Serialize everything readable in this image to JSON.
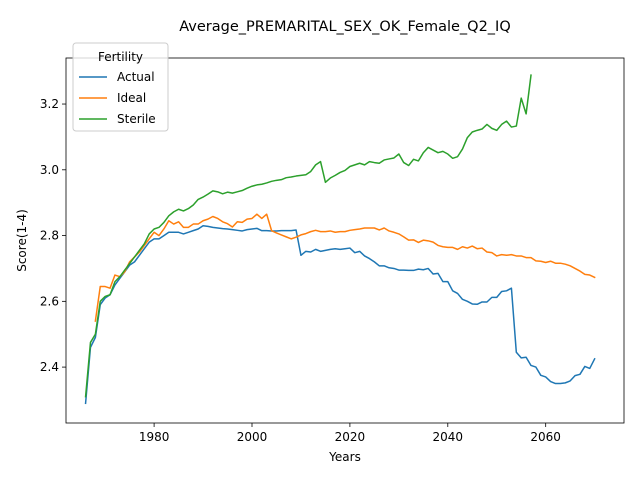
{
  "chart_data": {
    "type": "line",
    "title": "Average_PREMARITAL_SEX_OK_Female_Q2_IQ",
    "xlabel": "Years",
    "ylabel": "Score(1-4)",
    "xlim": [
      1962,
      2076
    ],
    "ylim": [
      2.23,
      3.34
    ],
    "x_ticks": [
      1980,
      2000,
      2020,
      2040,
      2060
    ],
    "y_ticks": [
      2.4,
      2.6,
      2.8,
      3.0,
      3.2
    ],
    "x_tick_labels": [
      "1980",
      "2000",
      "2020",
      "2040",
      "2060"
    ],
    "y_tick_labels": [
      "2.4",
      "2.6",
      "2.8",
      "3.0",
      "3.2"
    ],
    "grid": false,
    "legend": {
      "title": "Fertility",
      "placement": "top-left"
    },
    "series": [
      {
        "name": "Actual",
        "color": "#1f77b4",
        "points": [
          [
            1966,
            2.29
          ],
          [
            1967,
            2.46
          ],
          [
            1968,
            2.49
          ],
          [
            1969,
            2.59
          ],
          [
            1970,
            2.61
          ],
          [
            1971,
            2.62
          ],
          [
            1972,
            2.65
          ],
          [
            1973,
            2.67
          ],
          [
            1974,
            2.69
          ],
          [
            1975,
            2.71
          ],
          [
            1976,
            2.72
          ],
          [
            1977,
            2.74
          ],
          [
            1978,
            2.76
          ],
          [
            1979,
            2.78
          ],
          [
            1980,
            2.79
          ],
          [
            1981,
            2.79
          ],
          [
            1982,
            2.8
          ],
          [
            1983,
            2.81
          ],
          [
            1984,
            2.81
          ],
          [
            1985,
            2.81
          ],
          [
            1986,
            2.805
          ],
          [
            1987,
            2.81
          ],
          [
            1988,
            2.815
          ],
          [
            1989,
            2.82
          ],
          [
            1990,
            2.83
          ],
          [
            1991,
            2.828
          ],
          [
            1992,
            2.825
          ],
          [
            1993,
            2.823
          ],
          [
            1994,
            2.821
          ],
          [
            1995,
            2.82
          ],
          [
            1996,
            2.818
          ],
          [
            1997,
            2.816
          ],
          [
            1998,
            2.814
          ],
          [
            1999,
            2.818
          ],
          [
            2000,
            2.82
          ],
          [
            2001,
            2.822
          ],
          [
            2002,
            2.815
          ],
          [
            2003,
            2.815
          ],
          [
            2004,
            2.814
          ],
          [
            2005,
            2.814
          ],
          [
            2006,
            2.815
          ],
          [
            2007,
            2.815
          ],
          [
            2008,
            2.815
          ],
          [
            2009,
            2.817
          ],
          [
            2010,
            2.74
          ],
          [
            2011,
            2.752
          ],
          [
            2012,
            2.75
          ],
          [
            2013,
            2.758
          ],
          [
            2014,
            2.752
          ],
          [
            2015,
            2.755
          ],
          [
            2016,
            2.758
          ],
          [
            2017,
            2.76
          ],
          [
            2018,
            2.758
          ],
          [
            2019,
            2.76
          ],
          [
            2020,
            2.762
          ],
          [
            2021,
            2.748
          ],
          [
            2022,
            2.752
          ],
          [
            2023,
            2.738
          ],
          [
            2024,
            2.73
          ],
          [
            2025,
            2.72
          ],
          [
            2026,
            2.708
          ],
          [
            2027,
            2.708
          ],
          [
            2028,
            2.702
          ],
          [
            2029,
            2.7
          ],
          [
            2030,
            2.695
          ],
          [
            2031,
            2.695
          ],
          [
            2032,
            2.694
          ],
          [
            2033,
            2.694
          ],
          [
            2034,
            2.698
          ],
          [
            2035,
            2.696
          ],
          [
            2036,
            2.7
          ],
          [
            2037,
            2.683
          ],
          [
            2038,
            2.685
          ],
          [
            2039,
            2.66
          ],
          [
            2040,
            2.66
          ],
          [
            2041,
            2.632
          ],
          [
            2042,
            2.624
          ],
          [
            2043,
            2.606
          ],
          [
            2044,
            2.6
          ],
          [
            2045,
            2.592
          ],
          [
            2046,
            2.591
          ],
          [
            2047,
            2.598
          ],
          [
            2048,
            2.598
          ],
          [
            2049,
            2.612
          ],
          [
            2050,
            2.612
          ],
          [
            2051,
            2.63
          ],
          [
            2052,
            2.632
          ],
          [
            2053,
            2.64
          ],
          [
            2054,
            2.445
          ],
          [
            2055,
            2.428
          ],
          [
            2056,
            2.43
          ],
          [
            2057,
            2.405
          ],
          [
            2058,
            2.4
          ],
          [
            2059,
            2.375
          ],
          [
            2060,
            2.37
          ],
          [
            2061,
            2.356
          ],
          [
            2062,
            2.35
          ],
          [
            2063,
            2.35
          ],
          [
            2064,
            2.352
          ],
          [
            2065,
            2.358
          ],
          [
            2066,
            2.374
          ],
          [
            2067,
            2.378
          ],
          [
            2068,
            2.402
          ],
          [
            2069,
            2.396
          ],
          [
            2070,
            2.425
          ]
        ]
      },
      {
        "name": "Ideal",
        "color": "#ff7f0e",
        "points": [
          [
            1968,
            2.54
          ],
          [
            1969,
            2.645
          ],
          [
            1970,
            2.645
          ],
          [
            1971,
            2.64
          ],
          [
            1972,
            2.68
          ],
          [
            1973,
            2.675
          ],
          [
            1974,
            2.69
          ],
          [
            1975,
            2.72
          ],
          [
            1976,
            2.735
          ],
          [
            1977,
            2.75
          ],
          [
            1978,
            2.77
          ],
          [
            1979,
            2.79
          ],
          [
            1980,
            2.81
          ],
          [
            1981,
            2.8
          ],
          [
            1982,
            2.82
          ],
          [
            1983,
            2.845
          ],
          [
            1984,
            2.835
          ],
          [
            1985,
            2.842
          ],
          [
            1986,
            2.825
          ],
          [
            1987,
            2.825
          ],
          [
            1988,
            2.835
          ],
          [
            1989,
            2.835
          ],
          [
            1990,
            2.845
          ],
          [
            1991,
            2.85
          ],
          [
            1992,
            2.858
          ],
          [
            1993,
            2.852
          ],
          [
            1994,
            2.842
          ],
          [
            1995,
            2.836
          ],
          [
            1996,
            2.826
          ],
          [
            1997,
            2.842
          ],
          [
            1998,
            2.84
          ],
          [
            1999,
            2.85
          ],
          [
            2000,
            2.852
          ],
          [
            2001,
            2.865
          ],
          [
            2002,
            2.852
          ],
          [
            2003,
            2.865
          ],
          [
            2004,
            2.815
          ],
          [
            2005,
            2.808
          ],
          [
            2006,
            2.802
          ],
          [
            2007,
            2.796
          ],
          [
            2008,
            2.79
          ],
          [
            2009,
            2.795
          ],
          [
            2010,
            2.802
          ],
          [
            2011,
            2.806
          ],
          [
            2012,
            2.812
          ],
          [
            2013,
            2.816
          ],
          [
            2014,
            2.812
          ],
          [
            2015,
            2.812
          ],
          [
            2016,
            2.814
          ],
          [
            2017,
            2.81
          ],
          [
            2018,
            2.812
          ],
          [
            2019,
            2.812
          ],
          [
            2020,
            2.816
          ],
          [
            2021,
            2.818
          ],
          [
            2022,
            2.82
          ],
          [
            2023,
            2.823
          ],
          [
            2024,
            2.823
          ],
          [
            2025,
            2.823
          ],
          [
            2026,
            2.817
          ],
          [
            2027,
            2.823
          ],
          [
            2028,
            2.814
          ],
          [
            2029,
            2.81
          ],
          [
            2030,
            2.805
          ],
          [
            2031,
            2.796
          ],
          [
            2032,
            2.786
          ],
          [
            2033,
            2.787
          ],
          [
            2034,
            2.779
          ],
          [
            2035,
            2.786
          ],
          [
            2036,
            2.784
          ],
          [
            2037,
            2.78
          ],
          [
            2038,
            2.77
          ],
          [
            2039,
            2.766
          ],
          [
            2040,
            2.764
          ],
          [
            2041,
            2.764
          ],
          [
            2042,
            2.758
          ],
          [
            2043,
            2.766
          ],
          [
            2044,
            2.762
          ],
          [
            2045,
            2.768
          ],
          [
            2046,
            2.76
          ],
          [
            2047,
            2.762
          ],
          [
            2048,
            2.75
          ],
          [
            2049,
            2.748
          ],
          [
            2050,
            2.738
          ],
          [
            2051,
            2.742
          ],
          [
            2052,
            2.74
          ],
          [
            2053,
            2.742
          ],
          [
            2054,
            2.738
          ],
          [
            2055,
            2.738
          ],
          [
            2056,
            2.733
          ],
          [
            2057,
            2.733
          ],
          [
            2058,
            2.723
          ],
          [
            2059,
            2.722
          ],
          [
            2060,
            2.718
          ],
          [
            2061,
            2.722
          ],
          [
            2062,
            2.716
          ],
          [
            2063,
            2.716
          ],
          [
            2064,
            2.713
          ],
          [
            2065,
            2.708
          ],
          [
            2066,
            2.7
          ],
          [
            2067,
            2.692
          ],
          [
            2068,
            2.682
          ],
          [
            2069,
            2.68
          ],
          [
            2070,
            2.673
          ]
        ]
      },
      {
        "name": "Sterile",
        "color": "#2ca02c",
        "points": [
          [
            1966,
            2.31
          ],
          [
            1967,
            2.475
          ],
          [
            1968,
            2.5
          ],
          [
            1969,
            2.6
          ],
          [
            1970,
            2.615
          ],
          [
            1971,
            2.62
          ],
          [
            1972,
            2.66
          ],
          [
            1973,
            2.675
          ],
          [
            1974,
            2.695
          ],
          [
            1975,
            2.715
          ],
          [
            1976,
            2.735
          ],
          [
            1977,
            2.755
          ],
          [
            1978,
            2.775
          ],
          [
            1979,
            2.805
          ],
          [
            1980,
            2.82
          ],
          [
            1981,
            2.825
          ],
          [
            1982,
            2.84
          ],
          [
            1983,
            2.86
          ],
          [
            1984,
            2.872
          ],
          [
            1985,
            2.88
          ],
          [
            1986,
            2.875
          ],
          [
            1987,
            2.882
          ],
          [
            1988,
            2.893
          ],
          [
            1989,
            2.91
          ],
          [
            1990,
            2.917
          ],
          [
            1991,
            2.926
          ],
          [
            1992,
            2.936
          ],
          [
            1993,
            2.933
          ],
          [
            1994,
            2.927
          ],
          [
            1995,
            2.932
          ],
          [
            1996,
            2.929
          ],
          [
            1997,
            2.933
          ],
          [
            1998,
            2.937
          ],
          [
            1999,
            2.944
          ],
          [
            2000,
            2.95
          ],
          [
            2001,
            2.954
          ],
          [
            2002,
            2.956
          ],
          [
            2003,
            2.96
          ],
          [
            2004,
            2.965
          ],
          [
            2005,
            2.968
          ],
          [
            2006,
            2.97
          ],
          [
            2007,
            2.976
          ],
          [
            2008,
            2.978
          ],
          [
            2009,
            2.981
          ],
          [
            2010,
            2.983
          ],
          [
            2011,
            2.985
          ],
          [
            2012,
            2.995
          ],
          [
            2013,
            3.015
          ],
          [
            2014,
            3.025
          ],
          [
            2015,
            2.962
          ],
          [
            2016,
            2.975
          ],
          [
            2017,
            2.983
          ],
          [
            2018,
            2.992
          ],
          [
            2019,
            2.998
          ],
          [
            2020,
            3.01
          ],
          [
            2021,
            3.015
          ],
          [
            2022,
            3.02
          ],
          [
            2023,
            3.015
          ],
          [
            2024,
            3.025
          ],
          [
            2025,
            3.022
          ],
          [
            2026,
            3.02
          ],
          [
            2027,
            3.03
          ],
          [
            2028,
            3.033
          ],
          [
            2029,
            3.036
          ],
          [
            2030,
            3.048
          ],
          [
            2031,
            3.022
          ],
          [
            2032,
            3.013
          ],
          [
            2033,
            3.032
          ],
          [
            2034,
            3.027
          ],
          [
            2035,
            3.052
          ],
          [
            2036,
            3.068
          ],
          [
            2037,
            3.06
          ],
          [
            2038,
            3.052
          ],
          [
            2039,
            3.056
          ],
          [
            2040,
            3.048
          ],
          [
            2041,
            3.035
          ],
          [
            2042,
            3.04
          ],
          [
            2043,
            3.063
          ],
          [
            2044,
            3.098
          ],
          [
            2045,
            3.115
          ],
          [
            2046,
            3.12
          ],
          [
            2047,
            3.124
          ],
          [
            2048,
            3.138
          ],
          [
            2049,
            3.126
          ],
          [
            2050,
            3.12
          ],
          [
            2051,
            3.138
          ],
          [
            2052,
            3.148
          ],
          [
            2053,
            3.13
          ],
          [
            2054,
            3.133
          ],
          [
            2055,
            3.218
          ],
          [
            2056,
            3.17
          ],
          [
            2057,
            3.288
          ]
        ]
      }
    ]
  }
}
